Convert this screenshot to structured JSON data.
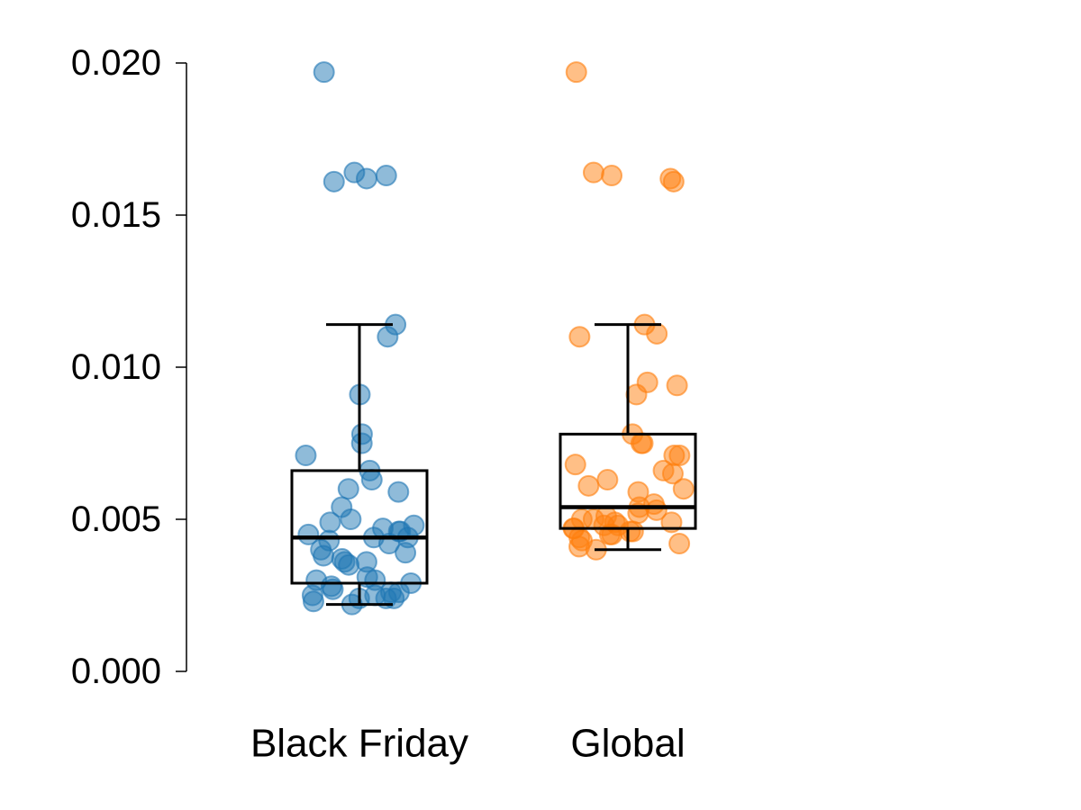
{
  "chart_data": {
    "type": "box",
    "title": "",
    "xlabel": "",
    "ylabel": "",
    "ylim": [
      0,
      0.02
    ],
    "yticks": [
      "0.000",
      "0.005",
      "0.010",
      "0.015",
      "0.020"
    ],
    "categories": [
      "Black Friday",
      "Global"
    ],
    "grid": false,
    "legend": "none",
    "colors": {
      "Black Friday": "#1f77b4",
      "Global": "#ff7f0e",
      "box": "#000000"
    },
    "boxes": [
      {
        "category": "Black Friday",
        "whisker_low": 0.0022,
        "q1": 0.0029,
        "median": 0.0044,
        "q3": 0.0066,
        "whisker_high": 0.0114,
        "points": [
          0.0197,
          0.0163,
          0.0162,
          0.0164,
          0.0161,
          0.0114,
          0.011,
          0.0091,
          0.0078,
          0.0075,
          0.0071,
          0.0066,
          0.0063,
          0.006,
          0.0059,
          0.0054,
          0.005,
          0.0049,
          0.0048,
          0.0047,
          0.0046,
          0.0046,
          0.0045,
          0.0044,
          0.0044,
          0.0043,
          0.0042,
          0.004,
          0.0039,
          0.0038,
          0.0037,
          0.0036,
          0.0036,
          0.0035,
          0.0031,
          0.003,
          0.003,
          0.0029,
          0.0028,
          0.0027,
          0.0026,
          0.0026,
          0.0025,
          0.0025,
          0.0024,
          0.0024,
          0.0024,
          0.0023,
          0.0022
        ]
      },
      {
        "category": "Global",
        "whisker_low": 0.004,
        "q1": 0.0047,
        "median": 0.0054,
        "q3": 0.0078,
        "whisker_high": 0.0114,
        "points": [
          0.0197,
          0.0163,
          0.0162,
          0.0164,
          0.0161,
          0.0114,
          0.0111,
          0.011,
          0.0095,
          0.0094,
          0.0091,
          0.0078,
          0.0075,
          0.0075,
          0.0071,
          0.0071,
          0.0068,
          0.0066,
          0.0065,
          0.0063,
          0.0061,
          0.006,
          0.0059,
          0.0055,
          0.0054,
          0.0053,
          0.0052,
          0.0051,
          0.005,
          0.005,
          0.0049,
          0.0049,
          0.0048,
          0.0048,
          0.0047,
          0.0047,
          0.0046,
          0.0046,
          0.0045,
          0.0045,
          0.0044,
          0.0043,
          0.0042,
          0.0041,
          0.004
        ]
      }
    ]
  }
}
